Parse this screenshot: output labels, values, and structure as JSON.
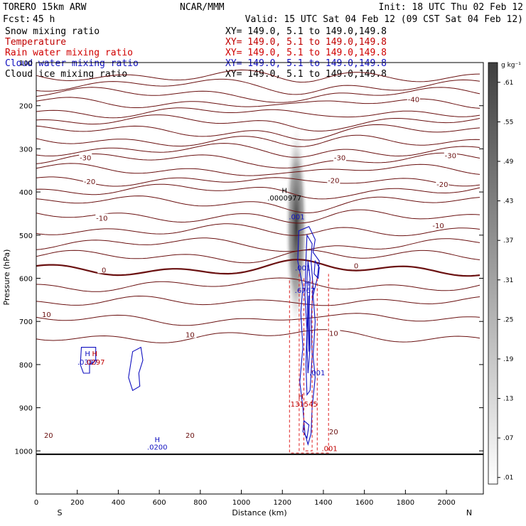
{
  "header": {
    "model": "TORERO  15km ARW",
    "center": "NCAR/MMM",
    "init": "Init: 18 UTC Thu 02 Feb 12",
    "fcst_label": "Fcst:",
    "fcst_value": "45 h",
    "valid": "Valid: 15 UTC Sat 04 Feb 12 (09 CST Sat 04 Feb 12)"
  },
  "fields": [
    {
      "name": "Snow mixing ratio",
      "xy": "XY= 149.0,  5.1 to 149.0,149.8",
      "color": "#000000"
    },
    {
      "name": "Temperature",
      "xy": "XY= 149.0,  5.1 to 149.0,149.8",
      "color": "#c00000"
    },
    {
      "name": "Rain water mixing ratio",
      "xy": "XY= 149.0,  5.1 to 149.0,149.8",
      "color": "#d00000"
    },
    {
      "name": "Cloud water mixing ratio",
      "xy": "XY= 149.0,  5.1 to 149.0,149.8",
      "color": "#1010c0"
    },
    {
      "name": "Cloud ice mixing ratio",
      "xy": "XY= 149.0,  5.1 to 149.0,149.8",
      "color": "#000000"
    }
  ],
  "chart_data": {
    "type": "contour",
    "xlabel": "Distance (km)",
    "ylabel": "Pressure (hPa)",
    "xlim": [
      0,
      2180
    ],
    "ylim": [
      1100,
      100
    ],
    "x_ticks": [
      "0",
      "200",
      "400",
      "600",
      "800",
      "1000",
      "1200",
      "1400",
      "1600",
      "1800",
      "2000"
    ],
    "x_tick_values": [
      0,
      200,
      400,
      600,
      800,
      1000,
      1200,
      1400,
      1600,
      1800,
      2000
    ],
    "y_ticks": [
      "100",
      "200",
      "300",
      "400",
      "500",
      "600",
      "700",
      "800",
      "900",
      "1000"
    ],
    "y_tick_values": [
      100,
      200,
      300,
      400,
      500,
      600,
      700,
      800,
      900,
      1000
    ],
    "left_end": "S",
    "right_end": "N",
    "colorbar": {
      "unit": "g kg⁻¹",
      "labels": [
        ".61",
        ".55",
        ".49",
        ".43",
        ".37",
        ".31",
        ".25",
        ".19",
        ".13",
        ".07",
        ".01"
      ],
      "values": [
        0.61,
        0.55,
        0.49,
        0.43,
        0.37,
        0.31,
        0.25,
        0.19,
        0.13,
        0.07,
        0.01
      ]
    },
    "temperature_contours": [
      {
        "label": "-40",
        "label_x": 1840,
        "label_p": 185
      },
      {
        "label": "-30",
        "label_x": 240,
        "label_p": 320
      },
      {
        "label": "-30",
        "label_x": 1480,
        "label_p": 320
      },
      {
        "label": "-30",
        "label_x": 2020,
        "label_p": 315
      },
      {
        "label": "-20",
        "label_x": 260,
        "label_p": 375
      },
      {
        "label": "-20",
        "label_x": 1450,
        "label_p": 373
      },
      {
        "label": "-20",
        "label_x": 1980,
        "label_p": 382
      },
      {
        "label": "-10",
        "label_x": 320,
        "label_p": 460
      },
      {
        "label": "-10",
        "label_x": 1960,
        "label_p": 477
      },
      {
        "label": "0",
        "label_x": 330,
        "label_p": 580
      },
      {
        "label": "0",
        "label_x": 1560,
        "label_p": 570
      },
      {
        "label": "10",
        "label_x": 50,
        "label_p": 683
      },
      {
        "label": "10",
        "label_x": 750,
        "label_p": 730
      },
      {
        "label": "10",
        "label_x": 1450,
        "label_p": 727
      },
      {
        "label": "20",
        "label_x": 60,
        "label_p": 963
      },
      {
        "label": "20",
        "label_x": 750,
        "label_p": 963
      },
      {
        "label": "20",
        "label_x": 1450,
        "label_p": 955
      }
    ],
    "annotations": [
      {
        "text": "H",
        "x": 1210,
        "p": 402,
        "color": "#000000"
      },
      {
        "text": ".0000977",
        "x": 1210,
        "p": 420,
        "color": "#000000"
      },
      {
        "text": ".001",
        "x": 1270,
        "p": 463,
        "color": "#1010c0"
      },
      {
        "text": ".001",
        "x": 1300,
        "p": 582,
        "color": "#1010c0"
      },
      {
        "text": "H",
        "x": 1320,
        "p": 617,
        "color": "#1010c0"
      },
      {
        "text": ".6767",
        "x": 1310,
        "p": 634,
        "color": "#1010c0"
      },
      {
        "text": ".001",
        "x": 1370,
        "p": 825,
        "color": "#1010c0"
      },
      {
        "text": "H",
        "x": 1290,
        "p": 879,
        "color": "#c00000"
      },
      {
        "text": ".131545",
        "x": 1300,
        "p": 897,
        "color": "#c00000"
      },
      {
        "text": ".001",
        "x": 1430,
        "p": 1000,
        "color": "#c00000"
      },
      {
        "text": "H",
        "x": 250,
        "p": 780,
        "color": "#1010c0"
      },
      {
        "text": "H",
        "x": 285,
        "p": 780,
        "color": "#c00000"
      },
      {
        "text": ".0387",
        "x": 250,
        "p": 800,
        "color": "#1010c0"
      },
      {
        "text": ".0297",
        "x": 285,
        "p": 800,
        "color": "#c00000"
      },
      {
        "text": "H",
        "x": 590,
        "p": 980,
        "color": "#1010c0"
      },
      {
        "text": ".0200",
        "x": 590,
        "p": 997,
        "color": "#1010c0"
      }
    ]
  }
}
